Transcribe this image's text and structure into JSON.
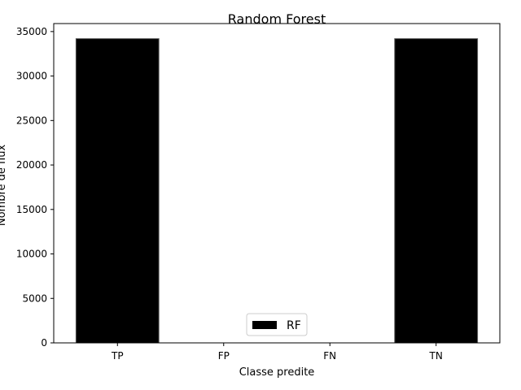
{
  "chart_data": {
    "type": "bar",
    "title": "Random Forest",
    "xlabel": "Classe predite",
    "ylabel": "Nombre de flux",
    "categories": [
      "TP",
      "FP",
      "FN",
      "TN"
    ],
    "series": [
      {
        "name": "RF",
        "values": [
          34200,
          0,
          0,
          34200
        ],
        "color": "#000000"
      }
    ],
    "ylim": [
      0,
      35900
    ],
    "yticks": [
      0,
      5000,
      10000,
      15000,
      20000,
      25000,
      30000,
      35000
    ],
    "legend_position": "bottom-center",
    "grid": false
  }
}
